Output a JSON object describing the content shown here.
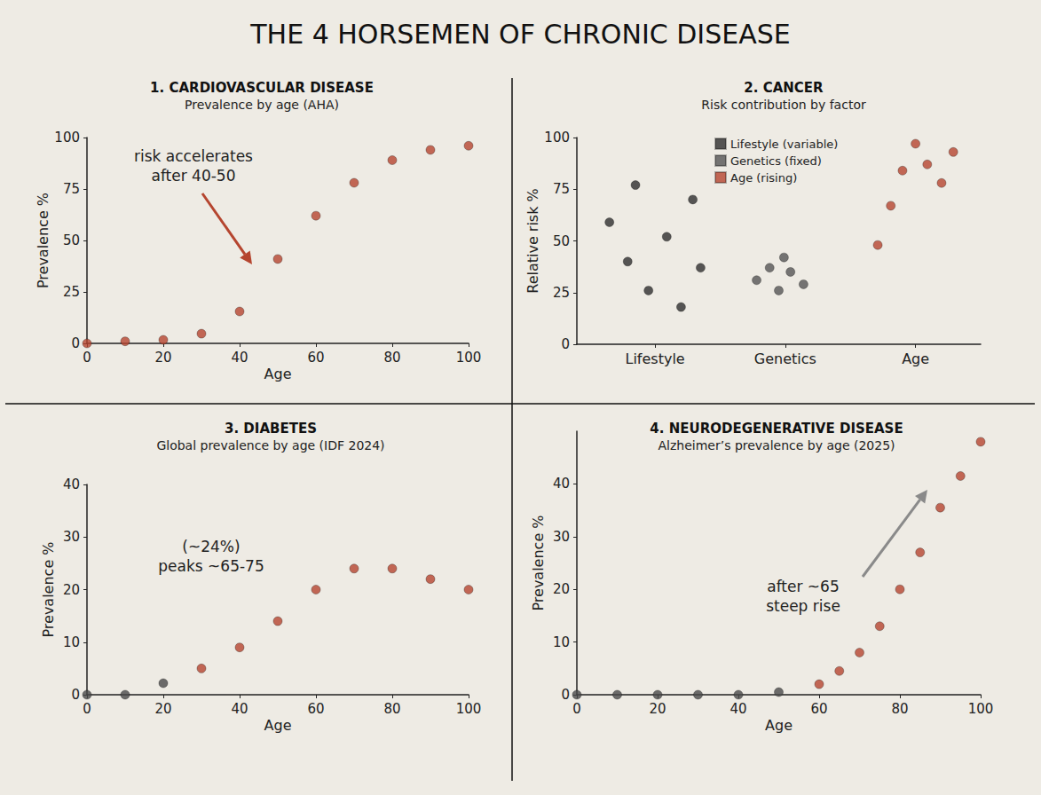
{
  "title": "THE 4 HORSEMEN OF CHRONIC DISEASE",
  "chart_data": [
    {
      "type": "scatter",
      "title": "1. CARDIOVASCULAR DISEASE",
      "subtitle": "Prevalence by age (AHA)",
      "x_label": "Age",
      "y_label": "Prevalence %",
      "x": [
        0,
        10,
        20,
        30,
        40,
        50,
        60,
        70,
        80,
        90,
        100
      ],
      "values": [
        0,
        1,
        1.7,
        4.7,
        15.5,
        41,
        62,
        78,
        89,
        94,
        96
      ],
      "color": "#b5452f",
      "marker": "circle",
      "xlim": [
        0,
        100
      ],
      "xticks": [
        0,
        20,
        40,
        60,
        80,
        100
      ],
      "ylim": [
        0,
        100
      ],
      "yticks": [
        0,
        25,
        50,
        75,
        100
      ],
      "grid": false,
      "annotations": [
        {
          "text": "risk accelerates\nafter 40-50"
        }
      ]
    },
    {
      "type": "scatter",
      "title": "2. CANCER",
      "subtitle": "Risk contribution by factor",
      "y_label": "Relative risk %",
      "marker": "circle",
      "legend": "top",
      "grid": false,
      "xlim": [
        0.4,
        3.5
      ],
      "xticks": [
        {
          "value": 1,
          "label": "Lifestyle"
        },
        {
          "value": 2,
          "label": "Genetics"
        },
        {
          "value": 3,
          "label": "Age"
        }
      ],
      "ylim": [
        0,
        100
      ],
      "yticks": [
        0,
        25,
        50,
        75,
        100
      ],
      "series": [
        {
          "name": "Lifestyle (variable)",
          "color": "#2e2e2e",
          "x": [
            0.65,
            0.79,
            0.85,
            0.95,
            1.09,
            1.2,
            1.29,
            1.35
          ],
          "values": [
            59,
            40,
            77,
            26,
            52,
            18,
            70,
            37
          ]
        },
        {
          "name": "Genetics (fixed)",
          "color": "#555555",
          "x": [
            1.78,
            1.88,
            1.95,
            1.99,
            2.04,
            2.14
          ],
          "values": [
            31,
            37,
            26,
            42,
            35,
            29
          ]
        },
        {
          "name": "Age (rising)",
          "color": "#b5452f",
          "x": [
            2.71,
            2.81,
            2.9,
            3.0,
            3.09,
            3.2,
            3.29
          ],
          "values": [
            48,
            67,
            84,
            97,
            87,
            78,
            93
          ]
        }
      ]
    },
    {
      "type": "scatter",
      "title": "3. DIABETES",
      "subtitle": "Global prevalence by age (IDF 2024)",
      "x_label": "Age",
      "y_label": "Prevalence %",
      "x": [
        0,
        10,
        20,
        30,
        40,
        50,
        60,
        70,
        80,
        90,
        100
      ],
      "values": [
        0,
        0,
        2.2,
        5,
        9,
        14,
        20,
        24,
        24,
        22,
        20
      ],
      "colors": [
        "#4a4a4a",
        "#4a4a4a",
        "#4a4a4a",
        "#b5452f",
        "#b5452f",
        "#b5452f",
        "#b5452f",
        "#b5452f",
        "#b5452f",
        "#b5452f",
        "#b5452f"
      ],
      "marker": "circle",
      "xlim": [
        0,
        100
      ],
      "xticks": [
        0,
        20,
        40,
        60,
        80,
        100
      ],
      "ylim": [
        0,
        40
      ],
      "yticks": [
        0,
        10,
        20,
        30,
        40
      ],
      "grid": false,
      "annotations": [
        {
          "text": "(~24%)\npeaks ~65-75"
        }
      ]
    },
    {
      "type": "scatter",
      "title": "4. NEURODEGENERATIVE DISEASE",
      "subtitle": "Alzheimer’s prevalence by age (2025)",
      "x_label": "Age",
      "y_label": "Prevalence %",
      "x": [
        0,
        10,
        20,
        30,
        40,
        50,
        60,
        65,
        70,
        75,
        80,
        85,
        90,
        95,
        100
      ],
      "values": [
        0,
        0,
        0,
        0,
        0,
        0.5,
        2,
        4.5,
        8,
        13,
        20,
        27,
        35.5,
        41.5,
        48
      ],
      "colors": [
        "#4a4a4a",
        "#4a4a4a",
        "#4a4a4a",
        "#4a4a4a",
        "#4a4a4a",
        "#4a4a4a",
        "#b5452f",
        "#b5452f",
        "#b5452f",
        "#b5452f",
        "#b5452f",
        "#b5452f",
        "#b5452f",
        "#b5452f",
        "#b5452f"
      ],
      "marker": "circle",
      "xlim": [
        0,
        100
      ],
      "xticks": [
        0,
        20,
        40,
        60,
        80,
        100
      ],
      "ylim": [
        0,
        50
      ],
      "yticks": [
        0,
        10,
        20,
        30,
        40
      ],
      "grid": false,
      "annotations": [
        {
          "text": "after ~65\nsteep rise"
        }
      ]
    }
  ]
}
